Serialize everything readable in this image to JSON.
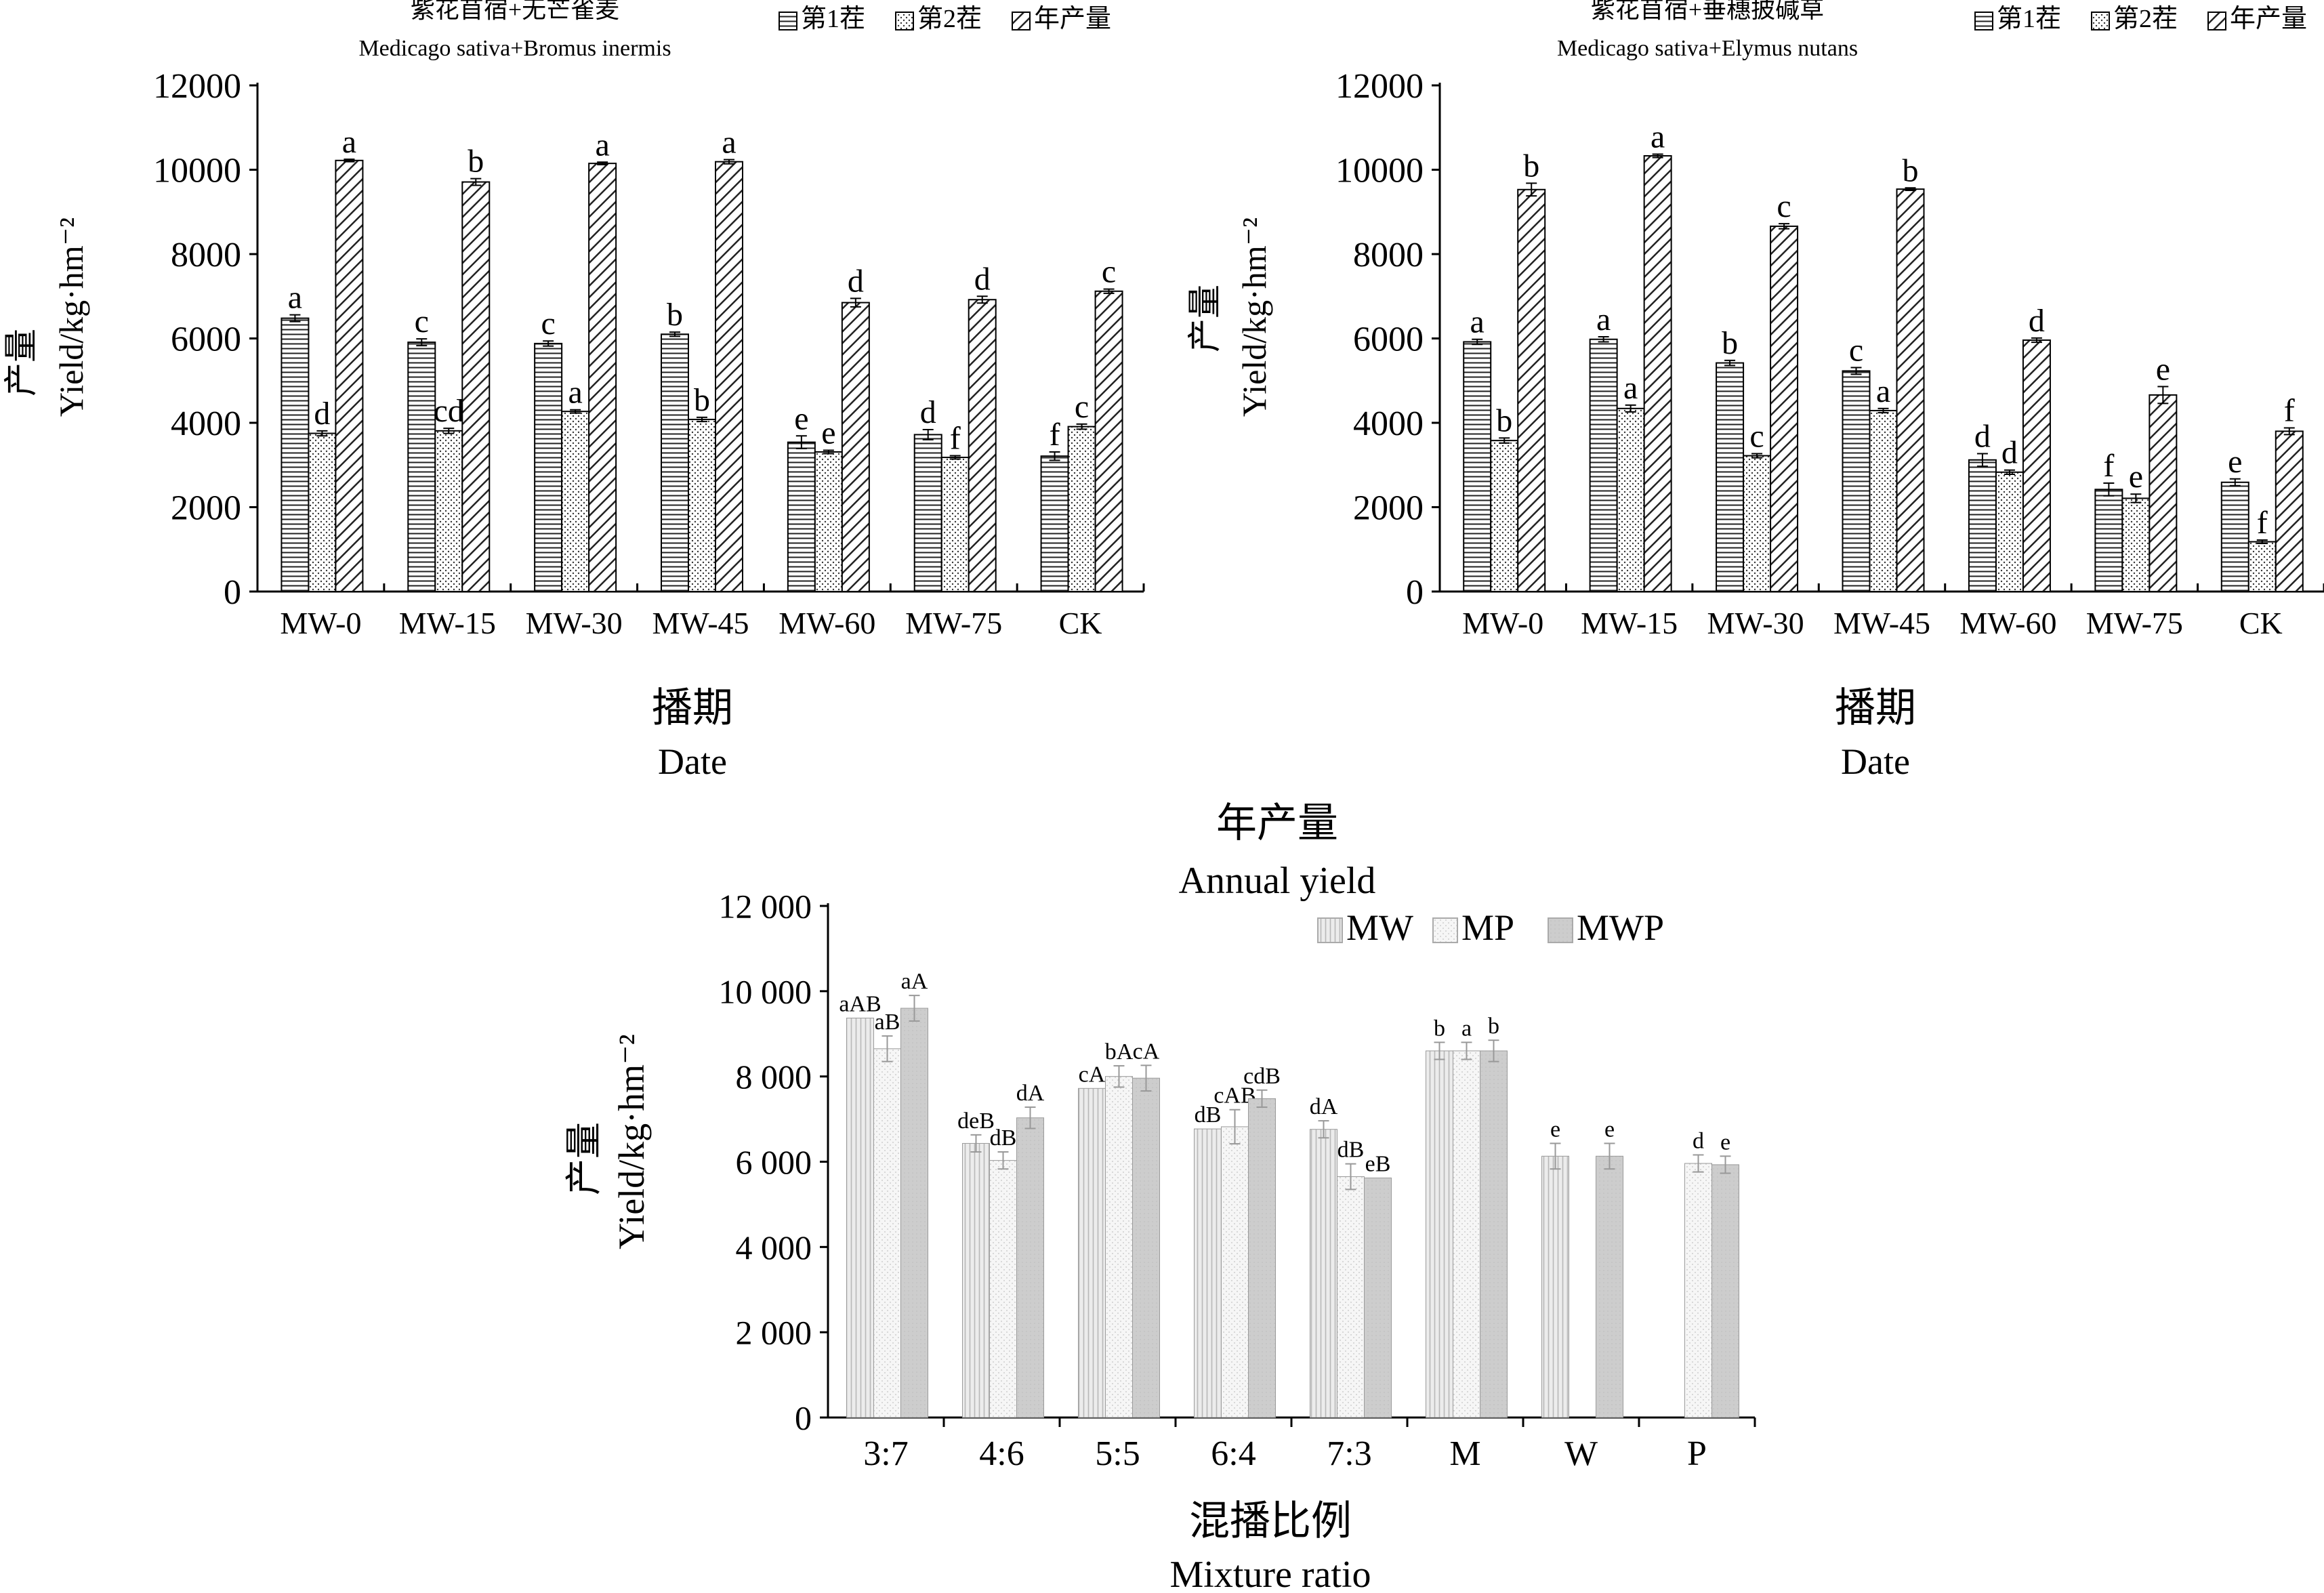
{
  "chart_data": [
    {
      "type": "bar",
      "title": "紫花苜宿+无芒雀麦",
      "subtitle": "Medicago sativa+Bromus inermis",
      "ylabel_cn": "产量",
      "ylabel": "Yield/kg·hm⁻²",
      "xlabel_cn": "播期",
      "xlabel": "Date",
      "ylim": [
        0,
        12000
      ],
      "yticks": [
        "0",
        "2000",
        "4000",
        "6000",
        "8000",
        "10000",
        "12000"
      ],
      "legend_position": "top-right",
      "categories": [
        "MW-0",
        "MW-15",
        "MW-30",
        "MW-45",
        "MW-60",
        "MW-75",
        "CK"
      ],
      "series": [
        {
          "name": "第1茬",
          "pattern": "horizontal-lines",
          "values": [
            6480,
            5910,
            5880,
            6100,
            3540,
            3720,
            3210
          ],
          "errors": [
            80,
            80,
            60,
            50,
            150,
            120,
            100
          ],
          "letters": [
            "a",
            "c",
            "c",
            "b",
            "e",
            "d",
            "f"
          ]
        },
        {
          "name": "第2茬",
          "pattern": "dots",
          "values": [
            3750,
            3810,
            4270,
            4080,
            3310,
            3180,
            3910
          ],
          "errors": [
            60,
            60,
            40,
            50,
            40,
            40,
            60
          ],
          "letters": [
            "d",
            "cd",
            "a",
            "b",
            "e",
            "f",
            "c"
          ]
        },
        {
          "name": "年产量",
          "pattern": "diagonal",
          "values": [
            10220,
            9710,
            10150,
            10190,
            6850,
            6920,
            7120
          ],
          "errors": [
            30,
            80,
            30,
            50,
            100,
            80,
            50
          ],
          "letters": [
            "a",
            "b",
            "a",
            "a",
            "d",
            "d",
            "c"
          ]
        }
      ]
    },
    {
      "type": "bar",
      "title": "紫花苜宿+垂穗披碱草",
      "subtitle": "Medicago sativa+Elymus nutans",
      "ylabel_cn": "产量",
      "ylabel": "Yield/kg·hm⁻²",
      "xlabel_cn": "播期",
      "xlabel": "Date",
      "ylim": [
        0,
        12000
      ],
      "yticks": [
        "0",
        "2000",
        "4000",
        "6000",
        "8000",
        "10000",
        "12000"
      ],
      "legend_position": "top-right",
      "categories": [
        "MW-0",
        "MW-15",
        "MW-30",
        "MW-45",
        "MW-60",
        "MW-75",
        "CK"
      ],
      "series": [
        {
          "name": "第1茬",
          "pattern": "horizontal-lines",
          "values": [
            5920,
            5980,
            5420,
            5230,
            3120,
            2420,
            2590
          ],
          "errors": [
            60,
            60,
            60,
            80,
            150,
            150,
            80
          ],
          "letters": [
            "a",
            "a",
            "b",
            "c",
            "d",
            "f",
            "e"
          ]
        },
        {
          "name": "第2茬",
          "pattern": "dots",
          "values": [
            3580,
            4340,
            3220,
            4290,
            2830,
            2210,
            1180
          ],
          "errors": [
            60,
            80,
            50,
            50,
            50,
            100,
            40
          ],
          "letters": [
            "b",
            "a",
            "c",
            "a",
            "d",
            "e",
            "f"
          ]
        },
        {
          "name": "年产量",
          "pattern": "diagonal",
          "values": [
            9530,
            10330,
            8660,
            9540,
            5960,
            4660,
            3800
          ],
          "errors": [
            150,
            40,
            60,
            30,
            50,
            200,
            80
          ],
          "letters": [
            "b",
            "a",
            "c",
            "b",
            "d",
            "e",
            "f"
          ]
        }
      ]
    },
    {
      "type": "bar",
      "title": "年产量",
      "subtitle": "Annual yield",
      "ylabel_cn": "产量",
      "ylabel": "Yield/kg·hm⁻²",
      "xlabel_cn": "混播比例",
      "xlabel": "Mixture ratio",
      "ylim": [
        0,
        12000
      ],
      "yticks": [
        "0",
        "2 000",
        "4 000",
        "6 000",
        "8 000",
        "10 000",
        "12 000"
      ],
      "legend_position": "top-right",
      "categories": [
        "3:7",
        "4:6",
        "5:5",
        "6:4",
        "7:3",
        "M",
        "W",
        "P"
      ],
      "series": [
        {
          "name": "MW",
          "pattern": "vertical-lines",
          "values": [
            9370,
            6430,
            7720,
            6770,
            6760,
            8600,
            6130,
            null
          ],
          "errors": [
            0,
            200,
            0,
            0,
            200,
            200,
            300,
            0
          ],
          "letters": [
            "aAB",
            "deB",
            "cA",
            "dB",
            "dA",
            "b",
            "e",
            ""
          ]
        },
        {
          "name": "MP",
          "pattern": "light-dots",
          "values": [
            8650,
            6030,
            8000,
            6820,
            5650,
            8600,
            null,
            5960
          ],
          "errors": [
            300,
            200,
            250,
            400,
            300,
            200,
            0,
            200
          ],
          "letters": [
            "aB",
            "dB",
            "bA",
            "cAB",
            "dB",
            "a",
            "",
            "d"
          ]
        },
        {
          "name": "MWP",
          "pattern": "gray",
          "values": [
            9600,
            7030,
            7960,
            7480,
            5620,
            8600,
            6130,
            5930
          ],
          "errors": [
            300,
            250,
            300,
            200,
            0,
            250,
            300,
            200
          ],
          "letters": [
            "aA",
            "dA",
            "cA",
            "cdB",
            "eB",
            "b",
            "e",
            "e"
          ]
        }
      ]
    }
  ]
}
